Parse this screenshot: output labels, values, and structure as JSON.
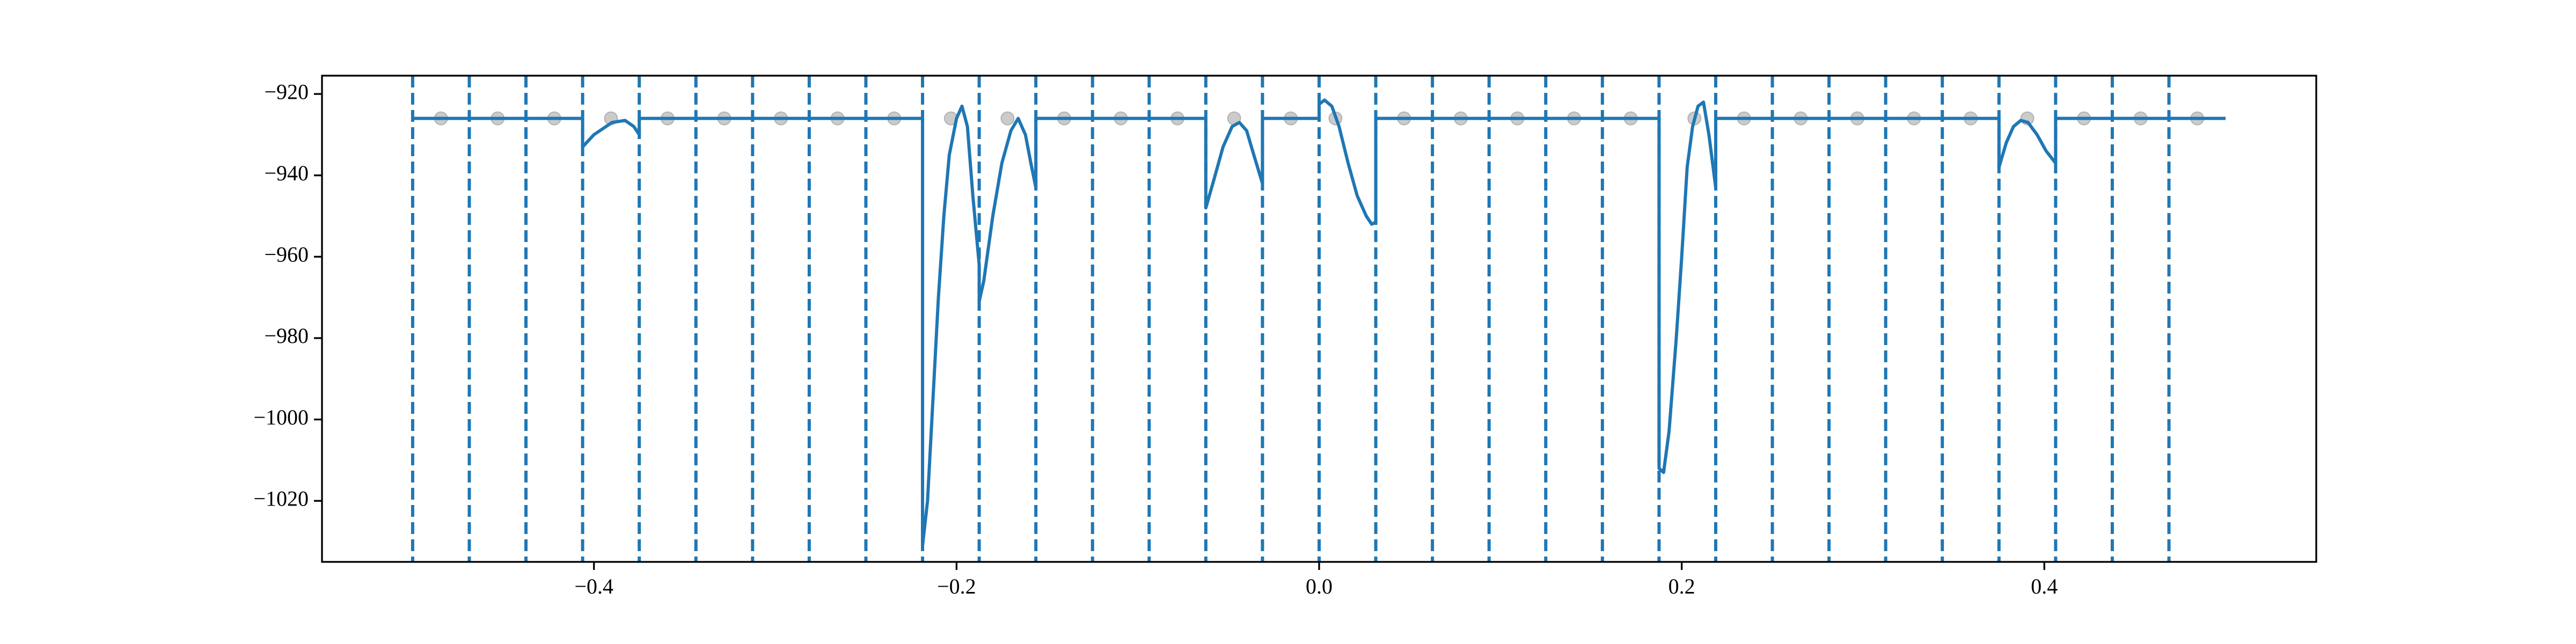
{
  "chart_data": {
    "type": "line",
    "xlim": [
      -0.55,
      0.55
    ],
    "ylim": [
      -1035,
      -915.5
    ],
    "xticks": [
      {
        "value": -0.4,
        "label": "−0.4"
      },
      {
        "value": -0.2,
        "label": "−0.2"
      },
      {
        "value": 0,
        "label": "0.0"
      },
      0.2,
      0.4
    ],
    "yticks": [
      {
        "value": -1020,
        "label": "−1020"
      },
      {
        "value": -1000,
        "label": "−1000"
      },
      {
        "value": -980,
        "label": "−980"
      },
      {
        "value": -960,
        "label": "−960"
      },
      {
        "value": -940,
        "label": "−940"
      },
      {
        "value": -920,
        "label": "−920"
      }
    ],
    "grid": false,
    "vlines": {
      "color": "#1f77b4",
      "style": "dashed",
      "x": [
        -0.5,
        -0.46875,
        -0.4375,
        -0.40625,
        -0.375,
        -0.34375,
        -0.3125,
        -0.28125,
        -0.25,
        -0.21875,
        -0.1875,
        -0.15625,
        -0.125,
        -0.09375,
        -0.0625,
        -0.03125,
        0,
        0.03125,
        0.0625,
        0.09375,
        0.125,
        0.15625,
        0.1875,
        0.21875,
        0.25,
        0.28125,
        0.3125,
        0.34375,
        0.375,
        0.40625,
        0.4375,
        0.46875
      ]
    },
    "series": [
      {
        "type": "line",
        "color": "#1f77b4",
        "x": [
          -0.5,
          -0.40625,
          -0.40625,
          -0.4,
          -0.39,
          -0.3828,
          -0.378,
          -0.375,
          -0.375,
          -0.21875,
          -0.21875,
          -0.216,
          -0.213,
          -0.21,
          -0.207,
          -0.204,
          -0.2,
          -0.197,
          -0.194,
          -0.191,
          -0.1875,
          -0.1875,
          -0.185,
          -0.18,
          -0.175,
          -0.17,
          -0.166,
          -0.162,
          -0.159,
          -0.15625,
          -0.15625,
          -0.0625,
          -0.0625,
          -0.058,
          -0.053,
          -0.048,
          -0.044,
          -0.04,
          -0.036,
          -0.03125,
          -0.03125,
          0,
          0,
          0.003,
          0.007,
          0.011,
          0.016,
          0.021,
          0.026,
          0.029,
          0.03125,
          0.03125,
          0.1875,
          0.1875,
          0.19,
          0.193,
          0.197,
          0.2,
          0.203,
          0.206,
          0.209,
          0.212,
          0.215,
          0.21875,
          0.21875,
          0.375,
          0.375,
          0.379,
          0.383,
          0.387,
          0.391,
          0.396,
          0.401,
          0.40625,
          0.40625,
          0.5
        ],
        "values": [
          -926,
          -926,
          -933,
          -930,
          -927,
          -926.5,
          -928,
          -930,
          -926,
          -926,
          -1031,
          -1020,
          -995,
          -970,
          -950,
          -935,
          -926,
          -923,
          -928,
          -945,
          -962,
          -971,
          -966,
          -950,
          -937,
          -929,
          -926,
          -930,
          -937,
          -943,
          -926,
          -926,
          -948,
          -941,
          -933,
          -928,
          -927,
          -929,
          -935,
          -942,
          -926,
          -926,
          -922.5,
          -921.5,
          -923,
          -928,
          -937,
          -945,
          -950,
          -952,
          -951.5,
          -926,
          -926,
          -1012,
          -1013,
          -1003,
          -980,
          -960,
          -938,
          -928,
          -923,
          -922,
          -930,
          -943,
          -926,
          -926,
          -938,
          -932,
          -928,
          -926.5,
          -927,
          -930,
          -934,
          -937,
          -926,
          -926
        ]
      },
      {
        "type": "scatter",
        "color": "#a0a0a0",
        "x": [
          -0.484375,
          -0.453125,
          -0.421875,
          -0.390625,
          -0.359375,
          -0.328125,
          -0.296875,
          -0.265625,
          -0.234375,
          -0.203125,
          -0.171875,
          -0.140625,
          -0.109375,
          -0.078125,
          -0.046875,
          -0.015625,
          0.009,
          0.046875,
          0.078125,
          0.109375,
          0.140625,
          0.171875,
          0.207,
          0.234375,
          0.265625,
          0.296875,
          0.328125,
          0.359375,
          0.390625,
          0.421875,
          0.453125,
          0.484375
        ],
        "values": [
          -926,
          -926,
          -926,
          -926,
          -926,
          -926,
          -926,
          -926,
          -926,
          -926,
          -926,
          -926,
          -926,
          -926,
          -926,
          -926,
          -926,
          -926,
          -926,
          -926,
          -926,
          -926,
          -926,
          -926,
          -926,
          -926,
          -926,
          -926,
          -926,
          -926,
          -926,
          -926
        ]
      }
    ]
  }
}
